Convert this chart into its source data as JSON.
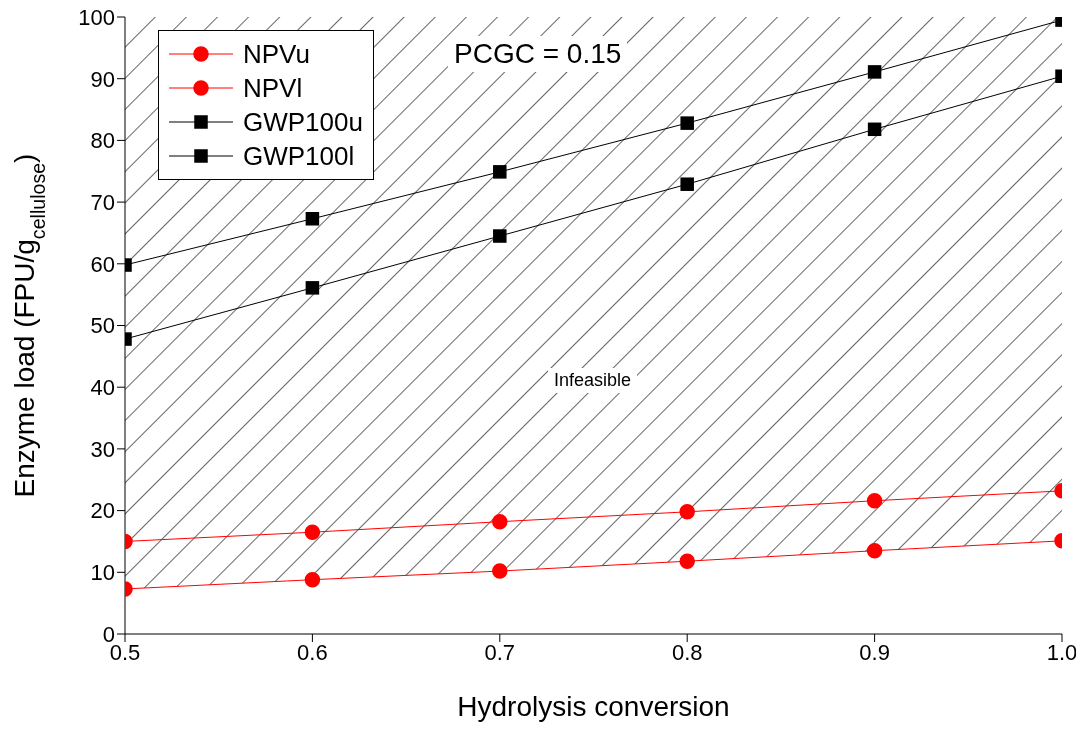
{
  "chart_data": {
    "type": "line",
    "xlabel": "Hydrolysis conversion",
    "ylabel": "Enzyme load (FPU/g$_{cellulose}$)",
    "x": [
      0.5,
      0.6,
      0.7,
      0.8,
      0.9,
      1.0
    ],
    "series": [
      {
        "name": "NPVu",
        "color": "#ff0000",
        "marker": "circle",
        "values": [
          15,
          16.5,
          18.2,
          19.8,
          21.6,
          23.2
        ]
      },
      {
        "name": "NPVl",
        "color": "#ff0000",
        "marker": "circle",
        "values": [
          7.3,
          8.8,
          10.2,
          11.8,
          13.5,
          15.1
        ]
      },
      {
        "name": "GWP100u",
        "color": "#000000",
        "marker": "square",
        "values": [
          59.8,
          67.3,
          74.9,
          82.8,
          91.1,
          99.5
        ]
      },
      {
        "name": "GWP100l",
        "color": "#000000",
        "marker": "square",
        "values": [
          47.8,
          56.1,
          64.5,
          72.9,
          81.8,
          90.4
        ]
      }
    ],
    "xlim": [
      0.5,
      1.0
    ],
    "xticks": [
      0.5,
      0.6,
      0.7,
      0.8,
      0.9,
      {
        "value": 1.0,
        "label": "1.0"
      }
    ],
    "ylim": [
      0,
      100
    ],
    "yticks": [
      0,
      10,
      20,
      30,
      40,
      50,
      60,
      70,
      80,
      90,
      100
    ],
    "grid": false,
    "legend": "top left",
    "line_style": "solid",
    "annotations": [
      "PCGC = 0.15",
      "Infeasible"
    ]
  }
}
